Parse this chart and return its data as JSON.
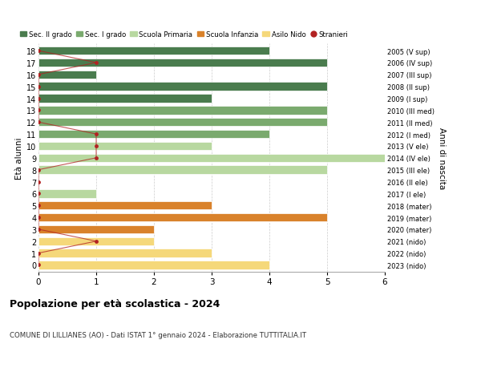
{
  "ages": [
    18,
    17,
    16,
    15,
    14,
    13,
    12,
    11,
    10,
    9,
    8,
    7,
    6,
    5,
    4,
    3,
    2,
    1,
    0
  ],
  "years": [
    "2005 (V sup)",
    "2006 (IV sup)",
    "2007 (III sup)",
    "2008 (II sup)",
    "2009 (I sup)",
    "2010 (III med)",
    "2011 (II med)",
    "2012 (I med)",
    "2013 (V ele)",
    "2014 (IV ele)",
    "2015 (III ele)",
    "2016 (II ele)",
    "2017 (I ele)",
    "2018 (mater)",
    "2019 (mater)",
    "2020 (mater)",
    "2021 (nido)",
    "2022 (nido)",
    "2023 (nido)"
  ],
  "bar_values": [
    4,
    5,
    1,
    5,
    3,
    5,
    5,
    4,
    3,
    6,
    5,
    0,
    1,
    3,
    5,
    2,
    2,
    3,
    4
  ],
  "bar_colors": [
    "#4a7c4e",
    "#4a7c4e",
    "#4a7c4e",
    "#4a7c4e",
    "#4a7c4e",
    "#7aaa6e",
    "#7aaa6e",
    "#7aaa6e",
    "#b8d8a0",
    "#b8d8a0",
    "#b8d8a0",
    "#b8d8a0",
    "#b8d8a0",
    "#d9822b",
    "#d9822b",
    "#d9822b",
    "#f5d87a",
    "#f5d87a",
    "#f5d87a"
  ],
  "stranieri_x": [
    0,
    1,
    0,
    0,
    0,
    0,
    0,
    1,
    1,
    1,
    0,
    0,
    0,
    0,
    0,
    0,
    1,
    0,
    0
  ],
  "legend_labels": [
    "Sec. II grado",
    "Sec. I grado",
    "Scuola Primaria",
    "Scuola Infanzia",
    "Asilo Nido",
    "Stranieri"
  ],
  "legend_colors": [
    "#4a7c4e",
    "#7aaa6e",
    "#b8d8a0",
    "#d9822b",
    "#f5d87a",
    "#b22222"
  ],
  "title": "Popolazione per età scolastica - 2024",
  "subtitle": "COMUNE DI LILLIANES (AO) - Dati ISTAT 1° gennaio 2024 - Elaborazione TUTTITALIA.IT",
  "ylabel": "Età alunni",
  "ylabel2": "Anni di nascita",
  "xlim": [
    0,
    6
  ],
  "background_color": "#ffffff",
  "grid_color": "#cccccc",
  "bar_height": 0.7,
  "stranieri_color": "#b22222"
}
